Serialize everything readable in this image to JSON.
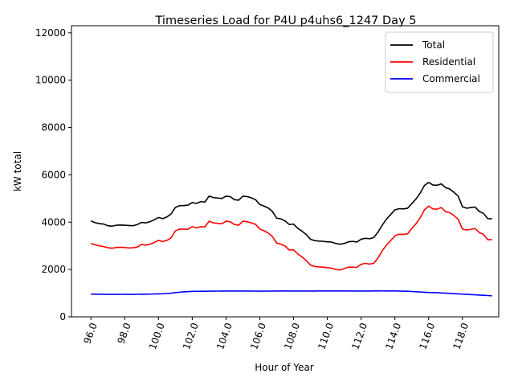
{
  "chart_data": {
    "type": "line",
    "title": "Timeseries Load for P4U p4uhs6_1247  Day 5",
    "xlabel": "Hour of Year",
    "ylabel": "kW total",
    "xlim": [
      94.85,
      120.15
    ],
    "ylim": [
      0,
      12300
    ],
    "grid": false,
    "legend_position": "top-right",
    "x_ticks": [
      96,
      98,
      100,
      102,
      104,
      106,
      108,
      110,
      112,
      114,
      116,
      118
    ],
    "x_tick_labels": [
      "96.0",
      "98.0",
      "100.0",
      "102.0",
      "104.0",
      "106.0",
      "108.0",
      "110.0",
      "112.0",
      "114.0",
      "116.0",
      "118.0"
    ],
    "y_ticks": [
      0,
      2000,
      4000,
      6000,
      8000,
      10000,
      12000
    ],
    "y_tick_labels": [
      "0",
      "2000",
      "4000",
      "6000",
      "8000",
      "10000",
      "12000"
    ],
    "x": {
      "start": 96.0,
      "step": 0.25,
      "count": 96
    },
    "series": [
      {
        "name": "Total",
        "color": "#000000",
        "values": [
          4050,
          3980,
          3940,
          3920,
          3850,
          3830,
          3870,
          3880,
          3870,
          3860,
          3850,
          3900,
          3990,
          3970,
          4020,
          4100,
          4200,
          4150,
          4220,
          4350,
          4620,
          4700,
          4700,
          4720,
          4830,
          4790,
          4870,
          4850,
          5100,
          5040,
          5020,
          5000,
          5100,
          5080,
          4950,
          4930,
          5100,
          5080,
          5030,
          4950,
          4750,
          4680,
          4600,
          4450,
          4170,
          4140,
          4050,
          3900,
          3920,
          3740,
          3620,
          3480,
          3280,
          3220,
          3200,
          3190,
          3170,
          3160,
          3100,
          3070,
          3100,
          3170,
          3190,
          3160,
          3280,
          3320,
          3300,
          3350,
          3580,
          3870,
          4130,
          4320,
          4520,
          4570,
          4560,
          4590,
          4780,
          4980,
          5230,
          5550,
          5680,
          5570,
          5560,
          5620,
          5460,
          5400,
          5260,
          5100,
          4650,
          4590,
          4620,
          4640,
          4450,
          4370,
          4150,
          4140
        ],
        "shown_range": [
          0,
          95
        ]
      },
      {
        "name": "Residential",
        "color": "#ff0000",
        "values": [
          3100,
          3040,
          3000,
          2970,
          2920,
          2900,
          2930,
          2940,
          2930,
          2910,
          2920,
          2950,
          3060,
          3030,
          3070,
          3140,
          3230,
          3180,
          3230,
          3340,
          3630,
          3710,
          3700,
          3700,
          3810,
          3760,
          3810,
          3800,
          4040,
          3970,
          3950,
          3930,
          4040,
          4020,
          3900,
          3870,
          4040,
          4020,
          3970,
          3910,
          3710,
          3640,
          3540,
          3390,
          3120,
          3070,
          2990,
          2820,
          2830,
          2660,
          2530,
          2380,
          2190,
          2130,
          2110,
          2100,
          2080,
          2060,
          2000,
          1980,
          2040,
          2100,
          2100,
          2090,
          2220,
          2260,
          2230,
          2260,
          2490,
          2790,
          3030,
          3220,
          3420,
          3490,
          3480,
          3510,
          3730,
          3930,
          4190,
          4520,
          4680,
          4560,
          4550,
          4620,
          4440,
          4400,
          4280,
          4120,
          3710,
          3670,
          3700,
          3730,
          3560,
          3480,
          3260,
          3260
        ],
        "shown_range": [
          0,
          95
        ]
      },
      {
        "name": "Commercial",
        "color": "#0000ff",
        "values": [
          960,
          958,
          955,
          953,
          950,
          949,
          950,
          951,
          950,
          950,
          949,
          951,
          955,
          956,
          960,
          965,
          972,
          975,
          985,
          1000,
          1020,
          1040,
          1055,
          1065,
          1075,
          1078,
          1080,
          1082,
          1085,
          1086,
          1087,
          1088,
          1090,
          1090,
          1089,
          1088,
          1090,
          1090,
          1088,
          1087,
          1086,
          1086,
          1087,
          1088,
          1090,
          1091,
          1092,
          1091,
          1090,
          1089,
          1088,
          1088,
          1090,
          1091,
          1092,
          1093,
          1094,
          1094,
          1095,
          1094,
          1093,
          1092,
          1091,
          1090,
          1089,
          1089,
          1090,
          1092,
          1095,
          1096,
          1094,
          1093,
          1092,
          1090,
          1085,
          1080,
          1070,
          1060,
          1050,
          1040,
          1030,
          1025,
          1020,
          1010,
          1000,
          990,
          980,
          970,
          960,
          950,
          940,
          930,
          920,
          910,
          900,
          890
        ],
        "shown_range": [
          0,
          95
        ]
      }
    ]
  }
}
